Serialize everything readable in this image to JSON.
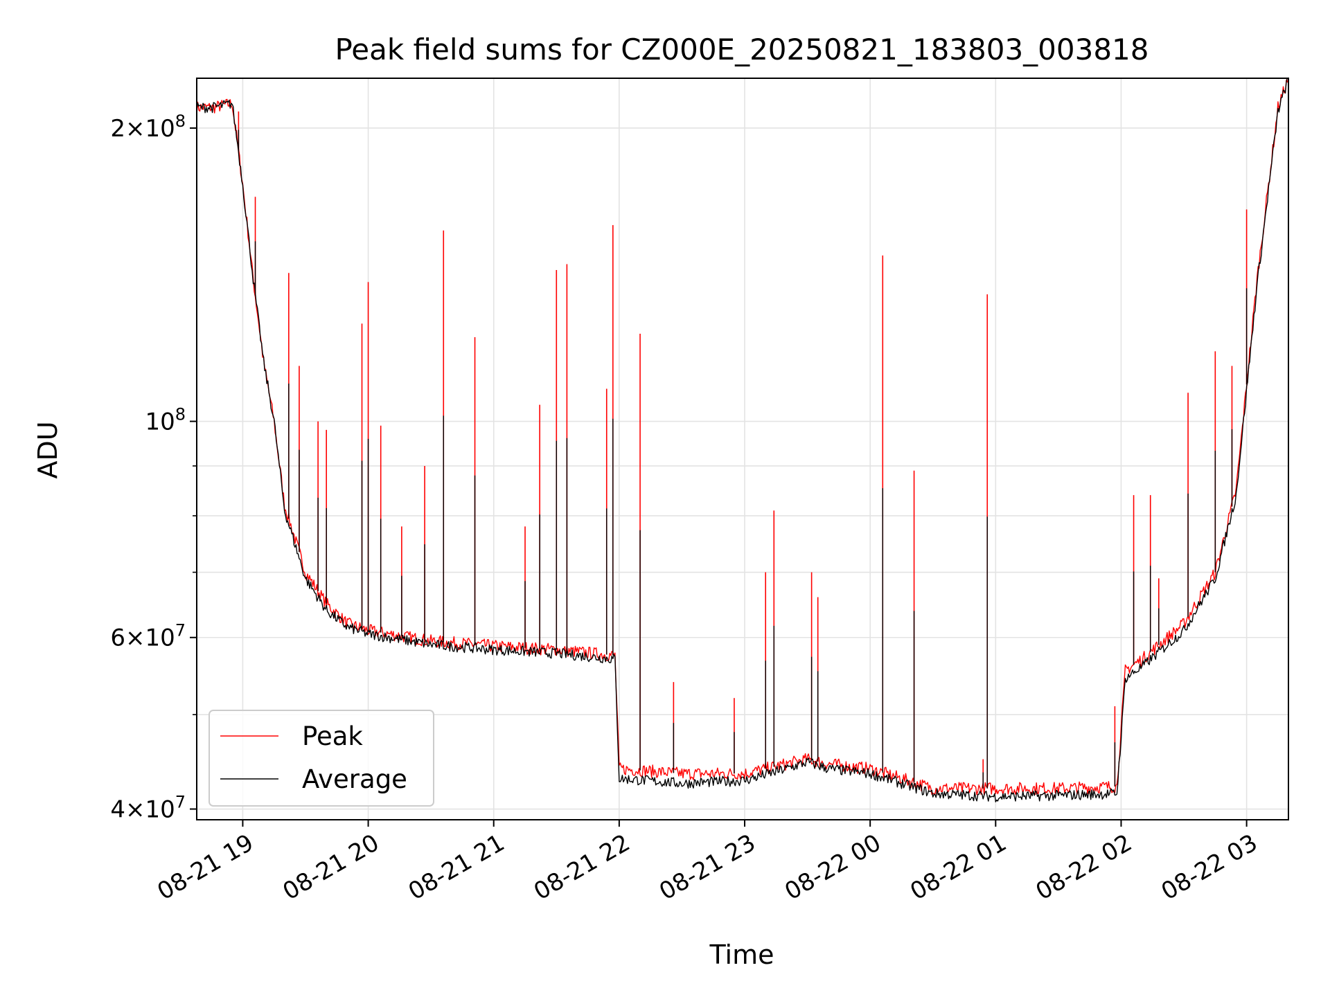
{
  "chart_data": {
    "type": "line",
    "title": "Peak field sums for CZ000E_20250821_183803_003818",
    "xlabel": "Time",
    "ylabel": "ADU",
    "y_scale": "log",
    "xlim": [
      "2025-08-21 18:38",
      "2025-08-22 03:20"
    ],
    "ylim": [
      39000000,
      225000000
    ],
    "x_ticks": [
      "08-21 19",
      "08-21 20",
      "08-21 21",
      "08-21 22",
      "08-21 23",
      "08-22 00",
      "08-22 01",
      "08-22 02",
      "08-22 03"
    ],
    "y_ticks_major": [
      {
        "value": 40000000,
        "mantissa": "4",
        "exponent": "7"
      },
      {
        "value": 60000000,
        "mantissa": "6",
        "exponent": "7"
      },
      {
        "value": 100000000,
        "mantissa": "",
        "exponent": "8"
      },
      {
        "value": 200000000,
        "mantissa": "2",
        "exponent": "8"
      }
    ],
    "y_ticks_minor": [
      50000000,
      70000000,
      80000000,
      90000000,
      300000000
    ],
    "grid": true,
    "legend": "lower-left",
    "series": [
      {
        "name": "Peak",
        "color": "#ff0000",
        "x": [
          "2025-08-21 18:38",
          "2025-08-21 18:46",
          "2025-08-21 18:55",
          "2025-08-21 19:00",
          "2025-08-21 19:05",
          "2025-08-21 19:10",
          "2025-08-21 19:15",
          "2025-08-21 19:20",
          "2025-08-21 19:30",
          "2025-08-21 19:40",
          "2025-08-21 19:50",
          "2025-08-21 20:00",
          "2025-08-21 20:30",
          "2025-08-21 21:00",
          "2025-08-21 21:30",
          "2025-08-21 21:58",
          "2025-08-21 22:00",
          "2025-08-21 22:30",
          "2025-08-21 23:00",
          "2025-08-21 23:20",
          "2025-08-21 23:30",
          "2025-08-21 23:40",
          "2025-08-22 00:00",
          "2025-08-22 00:15",
          "2025-08-22 00:30",
          "2025-08-22 01:00",
          "2025-08-22 01:30",
          "2025-08-22 01:58",
          "2025-08-22 02:02",
          "2025-08-22 02:10",
          "2025-08-22 02:30",
          "2025-08-22 02:45",
          "2025-08-22 02:55",
          "2025-08-22 03:05",
          "2025-08-22 03:15",
          "2025-08-22 03:20"
        ],
        "y": [
          210000000,
          210000000,
          212000000,
          175000000,
          140000000,
          115000000,
          100000000,
          82000000,
          70000000,
          65000000,
          62000000,
          61000000,
          59500000,
          58800000,
          58300000,
          57500000,
          44000000,
          43500000,
          43500000,
          44500000,
          45000000,
          44500000,
          44000000,
          43000000,
          42000000,
          42000000,
          42000000,
          42200000,
          55500000,
          57000000,
          62000000,
          70000000,
          85000000,
          140000000,
          210000000,
          225000000
        ]
      },
      {
        "name": "Average",
        "color": "#000000",
        "x": [
          "2025-08-21 18:38",
          "2025-08-21 18:46",
          "2025-08-21 18:55",
          "2025-08-21 19:00",
          "2025-08-21 19:05",
          "2025-08-21 19:10",
          "2025-08-21 19:15",
          "2025-08-21 19:20",
          "2025-08-21 19:30",
          "2025-08-21 19:40",
          "2025-08-21 19:50",
          "2025-08-21 20:00",
          "2025-08-21 20:30",
          "2025-08-21 21:00",
          "2025-08-21 21:30",
          "2025-08-21 21:58",
          "2025-08-21 22:00",
          "2025-08-21 22:30",
          "2025-08-21 23:00",
          "2025-08-21 23:20",
          "2025-08-21 23:30",
          "2025-08-21 23:40",
          "2025-08-22 00:00",
          "2025-08-22 00:15",
          "2025-08-22 00:30",
          "2025-08-22 01:00",
          "2025-08-22 01:30",
          "2025-08-22 01:58",
          "2025-08-22 02:02",
          "2025-08-22 02:10",
          "2025-08-22 02:30",
          "2025-08-22 02:45",
          "2025-08-22 02:55",
          "2025-08-22 03:05",
          "2025-08-22 03:15",
          "2025-08-22 03:20"
        ],
        "y": [
          210000000,
          210000000,
          212000000,
          175000000,
          140000000,
          115000000,
          100000000,
          81000000,
          69000000,
          64000000,
          61500000,
          60500000,
          59000000,
          58300000,
          57800000,
          57000000,
          43000000,
          42500000,
          42800000,
          44000000,
          44700000,
          44000000,
          43500000,
          42500000,
          41500000,
          41200000,
          41300000,
          41500000,
          54500000,
          56000000,
          61000000,
          69000000,
          84000000,
          138000000,
          208000000,
          225000000
        ]
      }
    ],
    "peak_spikes": [
      {
        "x": "2025-08-21 18:58",
        "y": 208000000
      },
      {
        "x": "2025-08-21 19:06",
        "y": 170000000
      },
      {
        "x": "2025-08-21 19:22",
        "y": 142000000
      },
      {
        "x": "2025-08-21 19:27",
        "y": 114000000
      },
      {
        "x": "2025-08-21 19:36",
        "y": 100000000
      },
      {
        "x": "2025-08-21 19:40",
        "y": 98000000
      },
      {
        "x": "2025-08-21 19:57",
        "y": 126000000
      },
      {
        "x": "2025-08-21 20:00",
        "y": 139000000
      },
      {
        "x": "2025-08-21 20:06",
        "y": 99000000
      },
      {
        "x": "2025-08-21 20:16",
        "y": 78000000
      },
      {
        "x": "2025-08-21 20:27",
        "y": 90000000
      },
      {
        "x": "2025-08-21 20:36",
        "y": 157000000
      },
      {
        "x": "2025-08-21 20:51",
        "y": 122000000
      },
      {
        "x": "2025-08-21 21:15",
        "y": 78000000
      },
      {
        "x": "2025-08-21 21:22",
        "y": 104000000
      },
      {
        "x": "2025-08-21 21:30",
        "y": 143000000
      },
      {
        "x": "2025-08-21 21:35",
        "y": 145000000
      },
      {
        "x": "2025-08-21 21:54",
        "y": 108000000
      },
      {
        "x": "2025-08-21 21:57",
        "y": 159000000
      },
      {
        "x": "2025-08-21 22:10",
        "y": 123000000
      },
      {
        "x": "2025-08-21 22:26",
        "y": 54000000
      },
      {
        "x": "2025-08-21 22:55",
        "y": 52000000
      },
      {
        "x": "2025-08-21 23:10",
        "y": 70000000
      },
      {
        "x": "2025-08-21 23:14",
        "y": 81000000
      },
      {
        "x": "2025-08-21 23:32",
        "y": 70000000
      },
      {
        "x": "2025-08-21 23:35",
        "y": 66000000
      },
      {
        "x": "2025-08-22 00:06",
        "y": 148000000
      },
      {
        "x": "2025-08-22 00:21",
        "y": 89000000
      },
      {
        "x": "2025-08-22 00:54",
        "y": 45000000
      },
      {
        "x": "2025-08-22 00:56",
        "y": 135000000
      },
      {
        "x": "2025-08-22 01:57",
        "y": 51000000
      },
      {
        "x": "2025-08-22 02:06",
        "y": 84000000
      },
      {
        "x": "2025-08-22 02:14",
        "y": 84000000
      },
      {
        "x": "2025-08-22 02:18",
        "y": 69000000
      },
      {
        "x": "2025-08-22 02:32",
        "y": 107000000
      },
      {
        "x": "2025-08-22 02:45",
        "y": 118000000
      },
      {
        "x": "2025-08-22 02:53",
        "y": 114000000
      },
      {
        "x": "2025-08-22 03:00",
        "y": 165000000
      }
    ]
  }
}
